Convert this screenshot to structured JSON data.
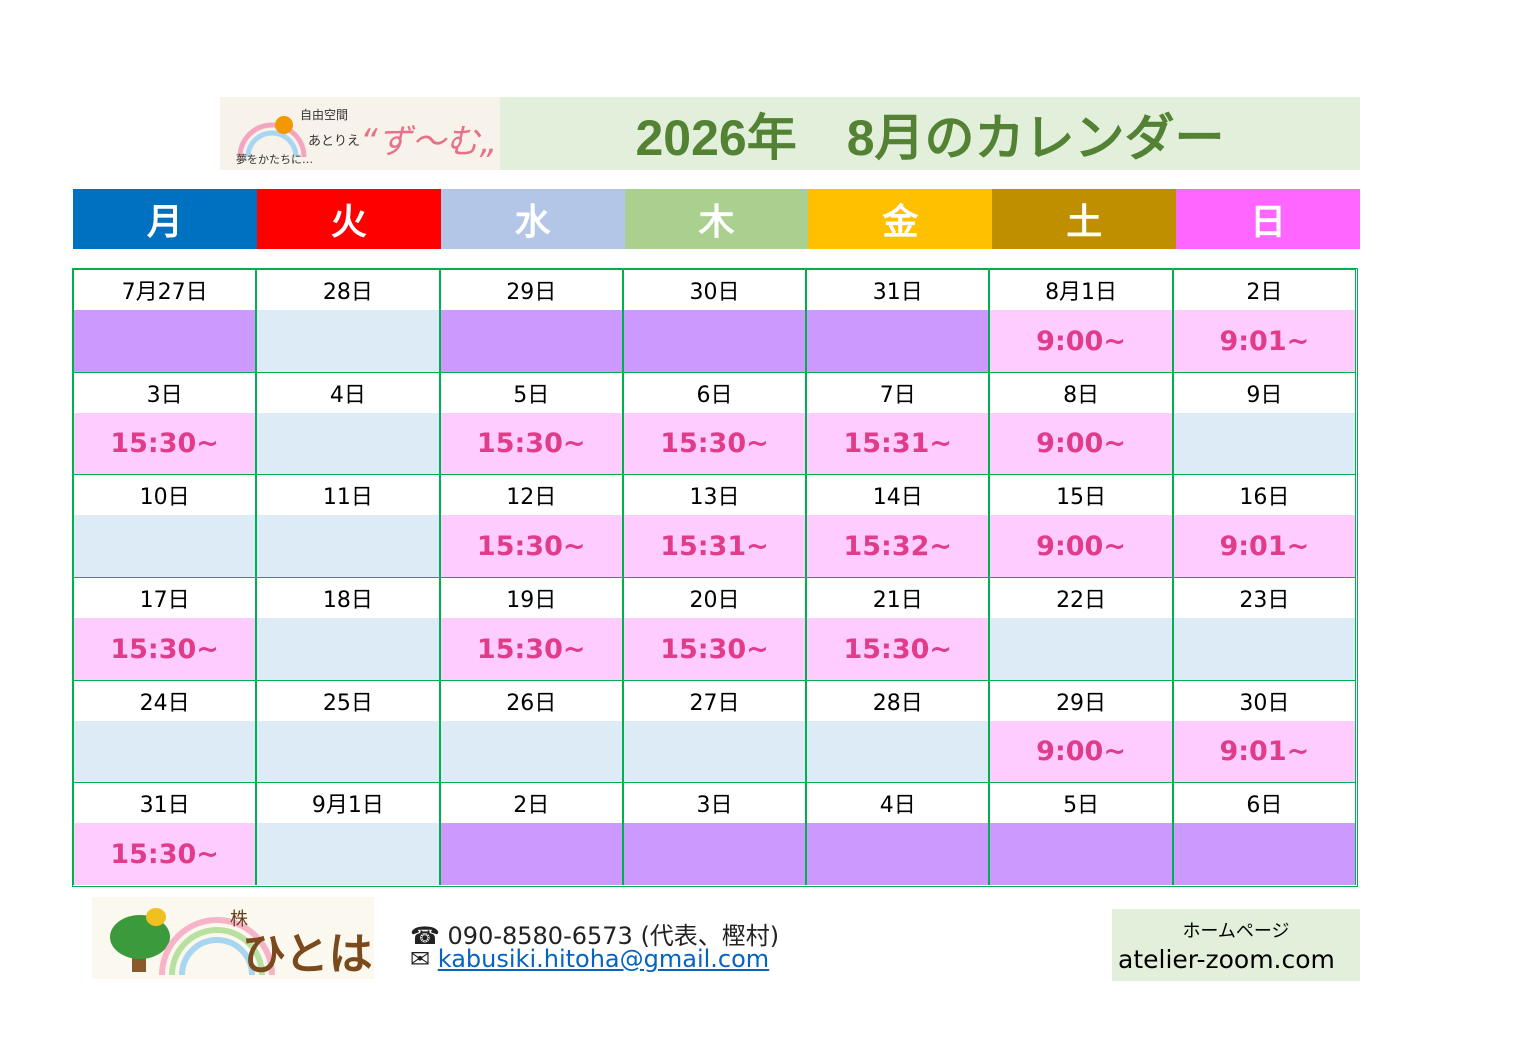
{
  "header": {
    "logo": {
      "line1": "自由空間",
      "line2": "あとりえ",
      "name": "“ず～む„",
      "tagline": "夢をかたちに…"
    },
    "title": "2026年　8月のカレンダー"
  },
  "weekdays": [
    {
      "label": "月",
      "color": "#0070c0"
    },
    {
      "label": "火",
      "color": "#ff0000"
    },
    {
      "label": "水",
      "color": "#b4c6e7"
    },
    {
      "label": "木",
      "color": "#a9d08e"
    },
    {
      "label": "金",
      "color": "#ffc000"
    },
    {
      "label": "土",
      "color": "#bf8f00"
    },
    {
      "label": "日",
      "color": "#ff66ff"
    }
  ],
  "weeks": [
    [
      {
        "date": "7月27日",
        "color": "#cc99ff"
      },
      {
        "date": "28日",
        "color": "#ddebf7"
      },
      {
        "date": "29日",
        "color": "#cc99ff"
      },
      {
        "date": "30日",
        "color": "#cc99ff"
      },
      {
        "date": "31日",
        "color": "#cc99ff"
      },
      {
        "date": "8月1日",
        "time": "9:00~",
        "color": "#ffccff"
      },
      {
        "date": "2日",
        "time": "9:01~",
        "color": "#ffccff"
      }
    ],
    [
      {
        "date": "3日",
        "time": "15:30~",
        "color": "#ffccff"
      },
      {
        "date": "4日",
        "color": "#ddebf7"
      },
      {
        "date": "5日",
        "time": "15:30~",
        "color": "#ffccff"
      },
      {
        "date": "6日",
        "time": "15:30~",
        "color": "#ffccff"
      },
      {
        "date": "7日",
        "time": "15:31~",
        "color": "#ffccff"
      },
      {
        "date": "8日",
        "time": "9:00~",
        "color": "#ffccff"
      },
      {
        "date": "9日",
        "color": "#ddebf7"
      }
    ],
    [
      {
        "date": "10日",
        "color": "#ddebf7"
      },
      {
        "date": "11日",
        "color": "#ddebf7"
      },
      {
        "date": "12日",
        "time": "15:30~",
        "color": "#ffccff"
      },
      {
        "date": "13日",
        "time": "15:31~",
        "color": "#ffccff"
      },
      {
        "date": "14日",
        "time": "15:32~",
        "color": "#ffccff"
      },
      {
        "date": "15日",
        "time": "9:00~",
        "color": "#ffccff"
      },
      {
        "date": "16日",
        "time": "9:01~",
        "color": "#ffccff"
      }
    ],
    [
      {
        "date": "17日",
        "time": "15:30~",
        "color": "#ffccff"
      },
      {
        "date": "18日",
        "color": "#ddebf7"
      },
      {
        "date": "19日",
        "time": "15:30~",
        "color": "#ffccff"
      },
      {
        "date": "20日",
        "time": "15:30~",
        "color": "#ffccff"
      },
      {
        "date": "21日",
        "time": "15:30~",
        "color": "#ffccff"
      },
      {
        "date": "22日",
        "color": "#ddebf7"
      },
      {
        "date": "23日",
        "color": "#ddebf7"
      }
    ],
    [
      {
        "date": "24日",
        "color": "#ddebf7"
      },
      {
        "date": "25日",
        "color": "#ddebf7"
      },
      {
        "date": "26日",
        "color": "#ddebf7"
      },
      {
        "date": "27日",
        "color": "#ddebf7"
      },
      {
        "date": "28日",
        "color": "#ddebf7"
      },
      {
        "date": "29日",
        "time": "9:00~",
        "color": "#ffccff"
      },
      {
        "date": "30日",
        "time": "9:01~",
        "color": "#ffccff"
      }
    ],
    [
      {
        "date": "31日",
        "time": "15:30~",
        "color": "#ffccff"
      },
      {
        "date": "9月1日",
        "color": "#ddebf7"
      },
      {
        "date": "2日",
        "color": "#cc99ff"
      },
      {
        "date": "3日",
        "color": "#cc99ff"
      },
      {
        "date": "4日",
        "color": "#cc99ff"
      },
      {
        "date": "5日",
        "color": "#cc99ff"
      },
      {
        "date": "6日",
        "color": "#cc99ff"
      }
    ]
  ],
  "footer": {
    "logo": {
      "mark": "株",
      "name": "ひとは"
    },
    "phone": "☎ 090-8580-6573 (代表、樫村)",
    "email_icon": "✉",
    "email": "kabusiki.hitoha@gmail.com",
    "homepage_label": "ホームページ",
    "homepage": "atelier-zoom.com"
  }
}
